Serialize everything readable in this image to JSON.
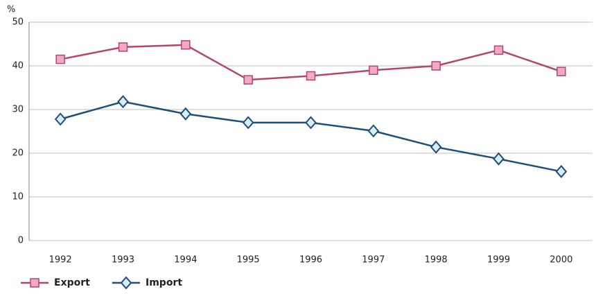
{
  "chart_data": {
    "type": "line",
    "y_label": "%",
    "categories": [
      "1992",
      "1993",
      "1994",
      "1995",
      "1996",
      "1997",
      "1998",
      "1999",
      "2000"
    ],
    "series": [
      {
        "name": "Export",
        "color": "#b5446e",
        "marker_fill": "#f2a9c6",
        "marker": "square",
        "values": [
          41.5,
          44.3,
          44.8,
          36.8,
          37.7,
          39,
          40,
          43.6,
          38.7
        ]
      },
      {
        "name": "Import",
        "color": "#1f4e79",
        "marker_fill": "#d6eef6",
        "marker": "diamond",
        "values": [
          27.8,
          31.8,
          29,
          27,
          27,
          25.1,
          21.4,
          18.7,
          15.8
        ]
      }
    ],
    "ylim": [
      0,
      50
    ],
    "yticks": [
      0,
      10,
      20,
      30,
      40,
      50
    ],
    "grid": true,
    "legend": "bottom-left"
  }
}
